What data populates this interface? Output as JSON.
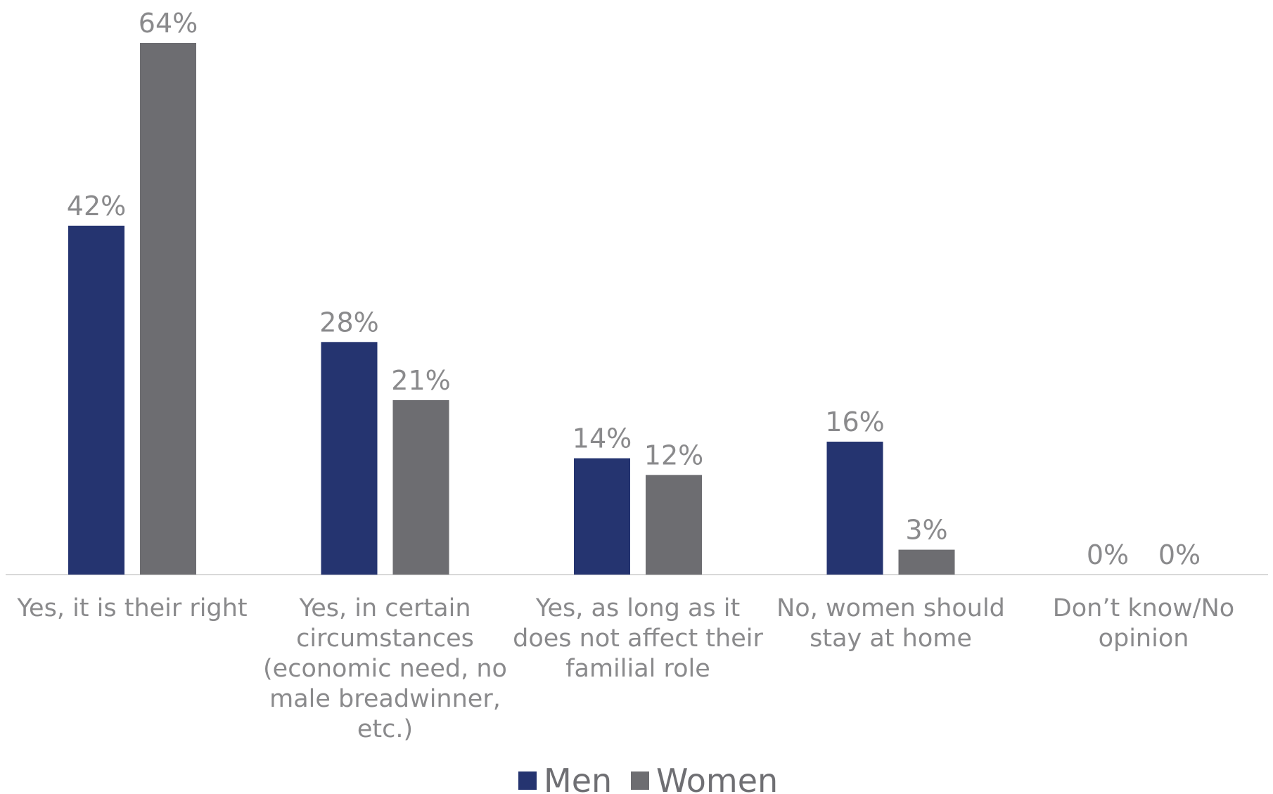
{
  "chart_data": {
    "type": "bar",
    "title": "",
    "xlabel": "",
    "ylabel": "",
    "ylim": [
      0,
      64
    ],
    "grid": false,
    "legend_position": "bottom",
    "value_suffix": "%",
    "categories": [
      [
        "Yes, it is their right"
      ],
      [
        "Yes, in certain",
        "circumstances",
        "(economic need, no",
        "male breadwinner,",
        "etc.)"
      ],
      [
        "Yes, as long as it",
        "does not affect their",
        "familial role"
      ],
      [
        "No, women should",
        "stay at home"
      ],
      [
        "Don’t know/No",
        "opinion"
      ]
    ],
    "series": [
      {
        "name": "Men",
        "color": "#253470",
        "values": [
          42,
          28,
          14,
          16,
          0
        ]
      },
      {
        "name": "Women",
        "color": "#6d6d71",
        "values": [
          64,
          21,
          12,
          3,
          0
        ]
      }
    ]
  }
}
